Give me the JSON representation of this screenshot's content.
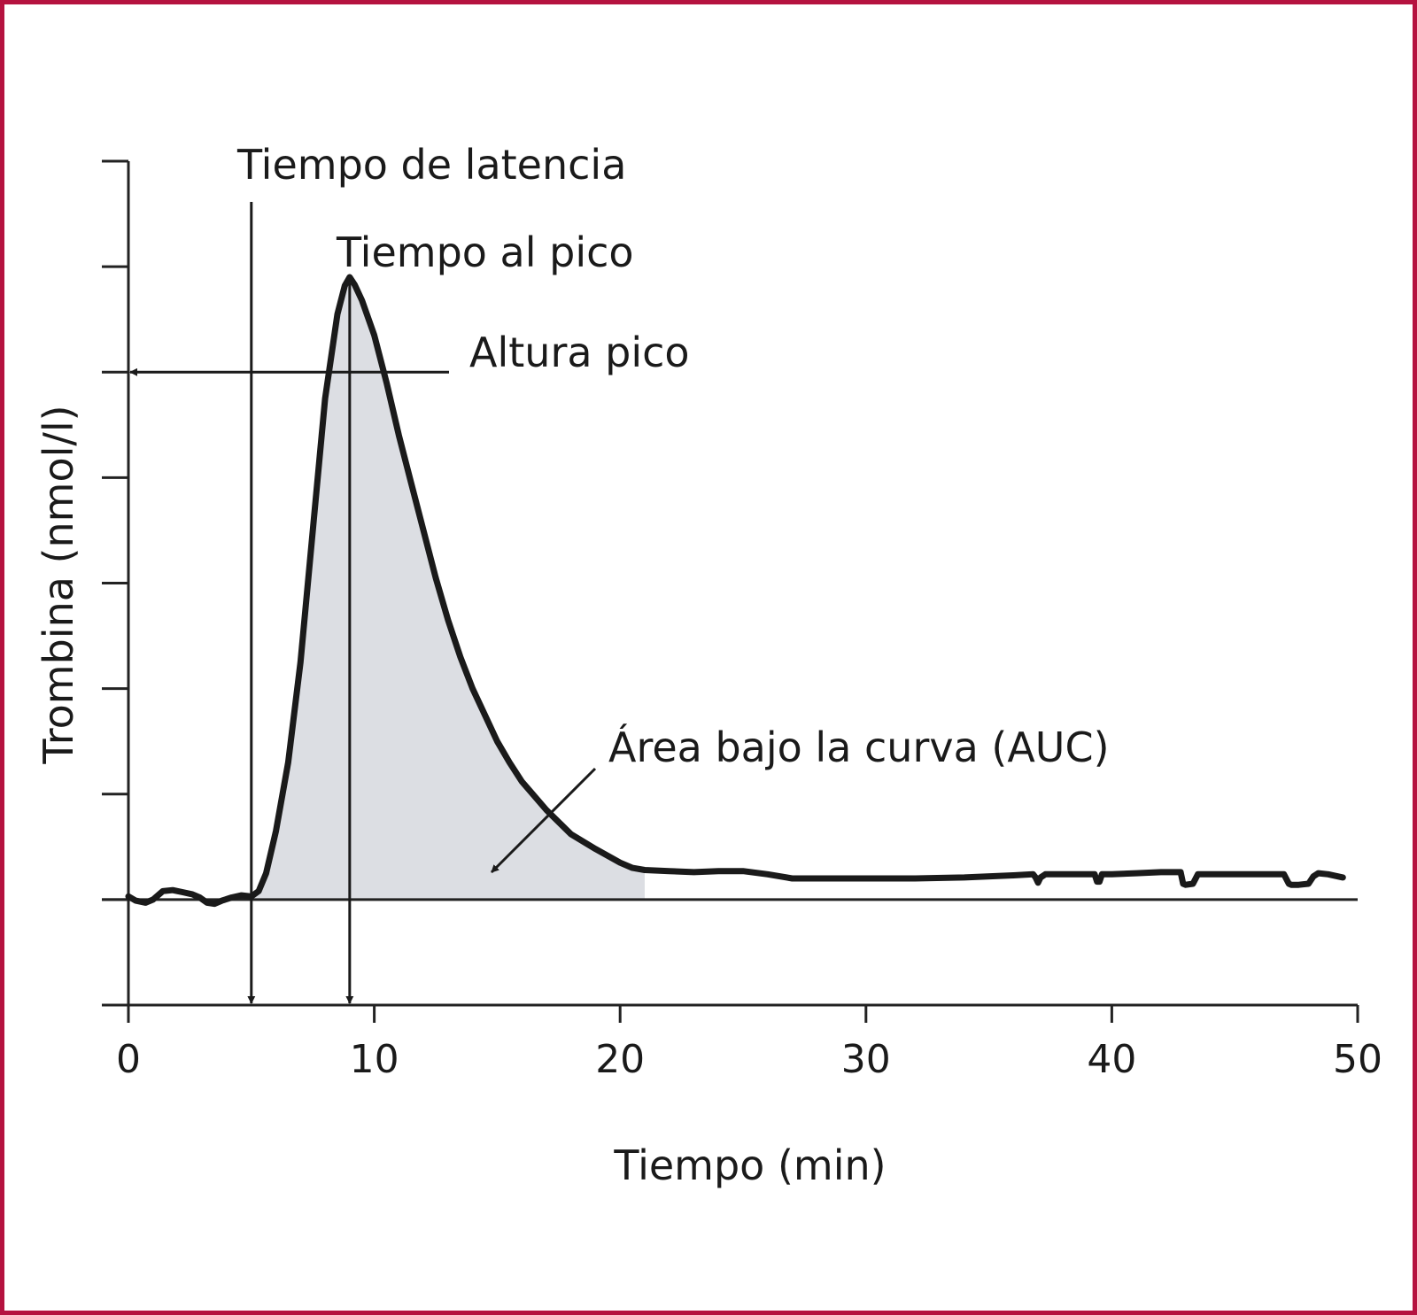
{
  "colors": {
    "frame": "#b5123f",
    "line": "#1a1a1a",
    "area": "#dcdee3",
    "axis": "#222222"
  },
  "chart_data": {
    "type": "line",
    "title": "",
    "xlabel": "Tiempo (min)",
    "ylabel": "Trombina (nmol/l)",
    "xlim": [
      0,
      50
    ],
    "ylim": [
      -1,
      7
    ],
    "x_ticks": [
      0,
      10,
      20,
      30,
      40,
      50
    ],
    "y_tick_count": 8,
    "grid": false,
    "legend": "none",
    "series": [
      {
        "x": [
          0,
          0.3,
          0.7,
          1.0,
          1.4,
          1.8,
          2.2,
          2.6,
          2.9,
          3.2,
          3.5,
          3.8,
          4.2,
          4.6,
          5.0,
          5.3,
          5.6,
          6.0,
          6.5,
          7.0,
          7.5,
          8.0,
          8.5,
          8.8,
          9.0,
          9.2,
          9.5,
          10.0,
          10.5,
          11.0,
          11.5,
          12.0,
          12.5,
          13.0,
          13.5,
          14.0,
          14.5,
          15.0,
          15.5,
          16.0,
          17.0,
          18.0,
          19.0,
          20.0,
          20.5,
          21.0,
          22.0,
          23.0,
          24.0,
          25.0,
          26.0,
          27.0,
          28.0,
          30.0,
          32.0,
          34.0,
          36.0,
          36.8,
          36.9,
          37.0,
          37.1,
          37.3,
          38.0,
          39.0,
          39.3,
          39.4,
          39.5,
          39.6,
          40.0,
          41.0,
          42.0,
          42.8,
          42.9,
          43.0,
          43.3,
          43.5,
          44.0,
          45.0,
          46.0,
          47.0,
          47.2,
          47.3,
          47.6,
          48.0,
          48.2,
          48.4,
          48.8,
          49.4
        ],
        "y": [
          0.03,
          -0.01,
          -0.03,
          0.0,
          0.08,
          0.09,
          0.07,
          0.05,
          0.02,
          -0.03,
          -0.04,
          -0.01,
          0.02,
          0.04,
          0.03,
          0.08,
          0.25,
          0.65,
          1.3,
          2.25,
          3.5,
          4.75,
          5.55,
          5.82,
          5.9,
          5.83,
          5.68,
          5.35,
          4.9,
          4.4,
          3.95,
          3.5,
          3.05,
          2.65,
          2.3,
          2.0,
          1.75,
          1.5,
          1.3,
          1.12,
          0.85,
          0.62,
          0.48,
          0.35,
          0.3,
          0.28,
          0.27,
          0.26,
          0.27,
          0.27,
          0.24,
          0.2,
          0.2,
          0.2,
          0.2,
          0.21,
          0.23,
          0.24,
          0.21,
          0.16,
          0.21,
          0.24,
          0.24,
          0.24,
          0.24,
          0.17,
          0.17,
          0.24,
          0.24,
          0.25,
          0.26,
          0.26,
          0.15,
          0.14,
          0.15,
          0.24,
          0.24,
          0.24,
          0.24,
          0.24,
          0.15,
          0.14,
          0.14,
          0.15,
          0.22,
          0.25,
          0.24,
          0.21
        ]
      }
    ],
    "shaded_area": {
      "x_from": 5.0,
      "x_to": 21.0,
      "label": "Área bajo la curva (AUC)"
    },
    "annotations": [
      {
        "label": "Tiempo de latencia",
        "x": 5.0
      },
      {
        "label": "Tiempo al pico",
        "x": 9.0
      },
      {
        "label": "Altura pico",
        "y": 5.0
      }
    ]
  }
}
